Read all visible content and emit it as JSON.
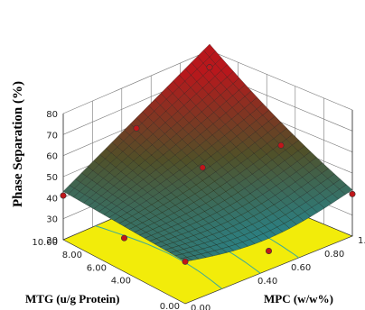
{
  "chart_data": {
    "type": "surface3d",
    "zlabel": "Phase Separation (%)",
    "xlabel": "MTG (u/g Protein)",
    "ylabel": "MPC (w/w%)",
    "z_ticks": [
      "20",
      "30",
      "40",
      "50",
      "60",
      "70",
      "80"
    ],
    "x_ticks": [
      "10.00",
      "8.00",
      "6.00",
      "4.00",
      "0.00"
    ],
    "y_ticks": [
      "0.00",
      "0.40",
      "0.60",
      "0.80",
      "1.0"
    ],
    "zlim": [
      20,
      80
    ],
    "xlim": [
      0,
      10
    ],
    "ylim": [
      0,
      1
    ],
    "colors": {
      "contour_floor": "#f2ec0a",
      "contour_line": "#3aa89c",
      "surface_low": "#1f8fa0",
      "surface_mid": "#6a5a2a",
      "surface_high": "#b8171c",
      "design_point": "#c0161a"
    },
    "design_points": [
      {
        "mtg": 0,
        "mpc": 0,
        "z": 40
      },
      {
        "mtg": 10,
        "mpc": 1,
        "z": 72
      },
      {
        "mtg": 10,
        "mpc": 0,
        "z": 41
      },
      {
        "mtg": 0,
        "mpc": 1,
        "z": 40
      },
      {
        "mtg": 5,
        "mpc": 0.5,
        "z": 54
      },
      {
        "mtg": 0,
        "mpc": 0.5,
        "z": 29
      },
      {
        "mtg": 10,
        "mpc": 0.5,
        "z": 58
      },
      {
        "mtg": 5,
        "mpc": 0,
        "z": 36
      },
      {
        "mtg": 5,
        "mpc": 1,
        "z": 49
      }
    ]
  }
}
